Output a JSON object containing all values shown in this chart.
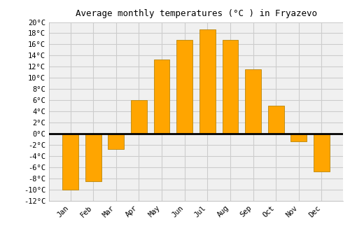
{
  "title": "Average monthly temperatures (°C ) in Fryazevo",
  "months": [
    "Jan",
    "Feb",
    "Mar",
    "Apr",
    "May",
    "Jun",
    "Jul",
    "Aug",
    "Sep",
    "Oct",
    "Nov",
    "Dec"
  ],
  "values": [
    -10,
    -8.5,
    -2.7,
    6,
    13.3,
    16.8,
    18.7,
    16.8,
    11.5,
    5,
    -1.3,
    -6.8
  ],
  "bar_color": "#FFA500",
  "bar_edge_color": "#B8860B",
  "ylim": [
    -12,
    20
  ],
  "yticks": [
    -12,
    -10,
    -8,
    -6,
    -4,
    -2,
    0,
    2,
    4,
    6,
    8,
    10,
    12,
    14,
    16,
    18,
    20
  ],
  "ytick_labels": [
    "-12°C",
    "-10°C",
    "-8°C",
    "-6°C",
    "-4°C",
    "-2°C",
    "0°C",
    "2°C",
    "4°C",
    "6°C",
    "8°C",
    "10°C",
    "12°C",
    "14°C",
    "16°C",
    "18°C",
    "20°C"
  ],
  "grid_color": "#cccccc",
  "background_color": "#ffffff",
  "plot_bg_color": "#f0f0f0",
  "title_fontsize": 9,
  "tick_fontsize": 7.5
}
